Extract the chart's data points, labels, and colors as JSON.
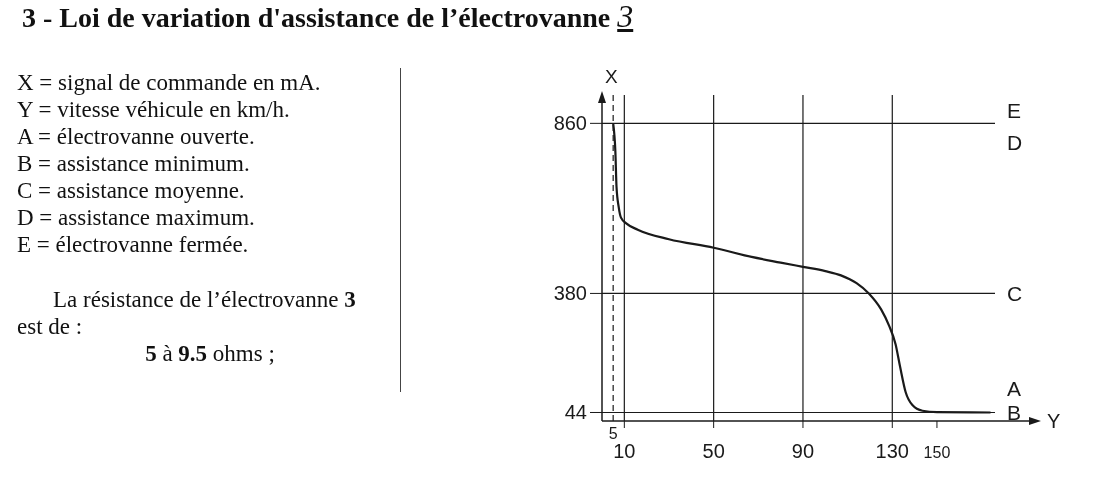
{
  "chart_data": {
    "type": "line",
    "title": "3 - Loi de variation d'assistance de l’électrovanne 3",
    "xlabel": "Y",
    "ylabel": "X",
    "x": [
      5,
      6,
      6.5,
      7.5,
      8.5,
      11,
      16,
      30,
      50,
      67,
      80,
      90,
      100,
      107,
      114,
      119.5,
      125,
      128.5,
      131.5,
      133.5,
      136,
      139,
      143.5,
      150,
      174
    ],
    "series": [
      {
        "color": "#1a1a1a",
        "values": [
          860,
          778,
          681,
          623,
          594,
          577,
          560,
          533,
          509,
          483,
          467,
          455,
          443,
          431,
          409,
          380,
          335,
          290,
          236,
          173,
          101,
          65,
          49,
          45,
          44
        ]
      }
    ],
    "xlim": [
      0,
      176
    ],
    "ylim": [
      20,
      940
    ],
    "xticks": [
      10,
      50,
      90,
      130,
      150
    ],
    "yticks": [
      44,
      380,
      860
    ],
    "marker": "none",
    "ref_lines": [
      {
        "axis": "x",
        "value": 5,
        "line_style": "dashed",
        "label": "5"
      },
      {
        "axis": "x",
        "value": 10
      },
      {
        "axis": "x",
        "value": 50
      },
      {
        "axis": "x",
        "value": 90
      },
      {
        "axis": "x",
        "value": 130
      },
      {
        "axis": "y",
        "value": 860,
        "label": "E"
      },
      {
        "axis": "y",
        "value": 380,
        "label": "C"
      },
      {
        "axis": "y",
        "value": 44,
        "label": "A"
      }
    ],
    "annotations": [
      "X = signal de commande en mA.",
      "Y = vitesse véhicule en km/h.",
      "A = électrovanne ouverte.",
      "B = assistance minimum.",
      "C = assistance moyenne.",
      "D = assistance maximum.",
      "E = électrovanne fermée.",
      "La résistance de l’électrovanne 3 est de :",
      "5 à 9.5 ohms ;",
      {
        "text": "D",
        "x": 176,
        "y": 860
      },
      {
        "text": "B",
        "x": 176,
        "y": 44
      }
    ]
  }
}
